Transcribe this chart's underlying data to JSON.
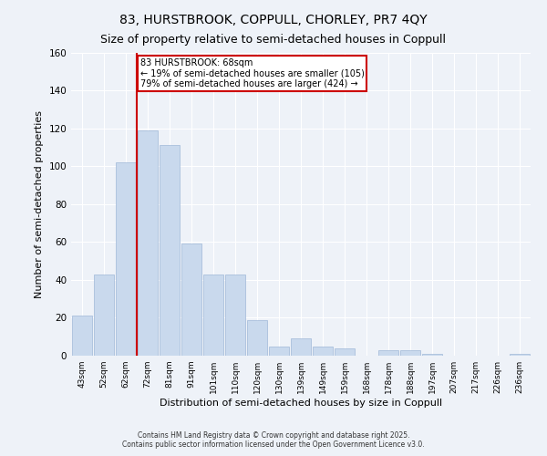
{
  "title": "83, HURSTBROOK, COPPULL, CHORLEY, PR7 4QY",
  "subtitle": "Size of property relative to semi-detached houses in Coppull",
  "xlabel": "Distribution of semi-detached houses by size in Coppull",
  "ylabel": "Number of semi-detached properties",
  "categories": [
    "43sqm",
    "52sqm",
    "62sqm",
    "72sqm",
    "81sqm",
    "91sqm",
    "101sqm",
    "110sqm",
    "120sqm",
    "130sqm",
    "139sqm",
    "149sqm",
    "159sqm",
    "168sqm",
    "178sqm",
    "188sqm",
    "197sqm",
    "207sqm",
    "217sqm",
    "226sqm",
    "236sqm"
  ],
  "values": [
    21,
    43,
    102,
    119,
    111,
    59,
    43,
    43,
    19,
    5,
    9,
    5,
    4,
    0,
    3,
    3,
    1,
    0,
    0,
    0,
    1
  ],
  "bar_color": "#c9d9ed",
  "bar_edge_color": "#a0b8d8",
  "ylim": [
    0,
    160
  ],
  "yticks": [
    0,
    20,
    40,
    60,
    80,
    100,
    120,
    140,
    160
  ],
  "annotation_text": "83 HURSTBROOK: 68sqm\n← 19% of semi-detached houses are smaller (105)\n79% of semi-detached houses are larger (424) →",
  "annotation_box_color": "#ffffff",
  "annotation_box_edge": "#cc0000",
  "vline_color": "#cc0000",
  "footer": "Contains HM Land Registry data © Crown copyright and database right 2025.\nContains public sector information licensed under the Open Government Licence v3.0.",
  "background_color": "#eef2f8",
  "title_fontsize": 10,
  "subtitle_fontsize": 9,
  "vline_x": 2.5
}
